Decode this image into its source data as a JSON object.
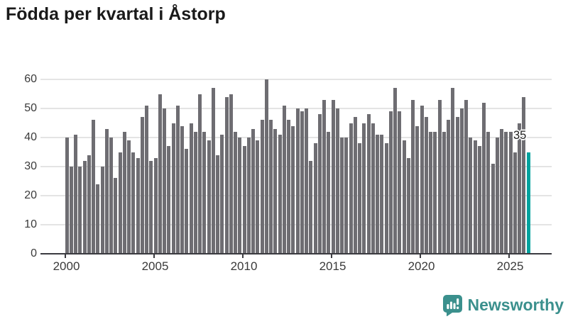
{
  "title": "Födda per kvartal i Åstorp",
  "chart_data": {
    "type": "bar",
    "title": "Födda per kvartal i Åstorp",
    "description": "Number of births per quarter",
    "start_year": 2000,
    "start_period": "2000-Q1",
    "end_period": "2026-Q1",
    "quarters_per_year": 4,
    "values": [
      40,
      30,
      41,
      30,
      32,
      34,
      46,
      24,
      30,
      43,
      40,
      26,
      35,
      42,
      39,
      35,
      33,
      47,
      51,
      32,
      33,
      55,
      50,
      37,
      45,
      51,
      44,
      36,
      45,
      42,
      55,
      42,
      39,
      57,
      34,
      41,
      54,
      55,
      42,
      40,
      37,
      40,
      43,
      39,
      46,
      60,
      46,
      43,
      41,
      51,
      46,
      44,
      50,
      49,
      50,
      32,
      38,
      48,
      53,
      42,
      53,
      50,
      40,
      40,
      45,
      47,
      38,
      45,
      48,
      45,
      41,
      41,
      38,
      49,
      57,
      49,
      39,
      33,
      53,
      44,
      51,
      47,
      42,
      42,
      53,
      42,
      46,
      57,
      47,
      50,
      53,
      40,
      39,
      37,
      52,
      42,
      31,
      40,
      43,
      42,
      42,
      35,
      45,
      54,
      35
    ],
    "highlight_last": true,
    "highlight_label": "35",
    "x_tick_years": [
      2000,
      2005,
      2010,
      2015,
      2020,
      2025
    ],
    "y_ticks": [
      0,
      10,
      20,
      30,
      40,
      50,
      60
    ],
    "ylim": [
      0,
      60
    ],
    "grid": true,
    "legend": "none",
    "colors": {
      "bar": "#6e6d72",
      "highlight": "#00a29e",
      "grid": "#e4e4e4",
      "axis": "#3b3b40",
      "tick_label": "#3a3a3a",
      "title": "#1a1a1a"
    }
  },
  "annotation": {
    "text": "35"
  },
  "footer": {
    "brand": "Newsworthy",
    "brand_color": "#3b908d",
    "logo_icon": "bar-chart-speech-bubble"
  }
}
